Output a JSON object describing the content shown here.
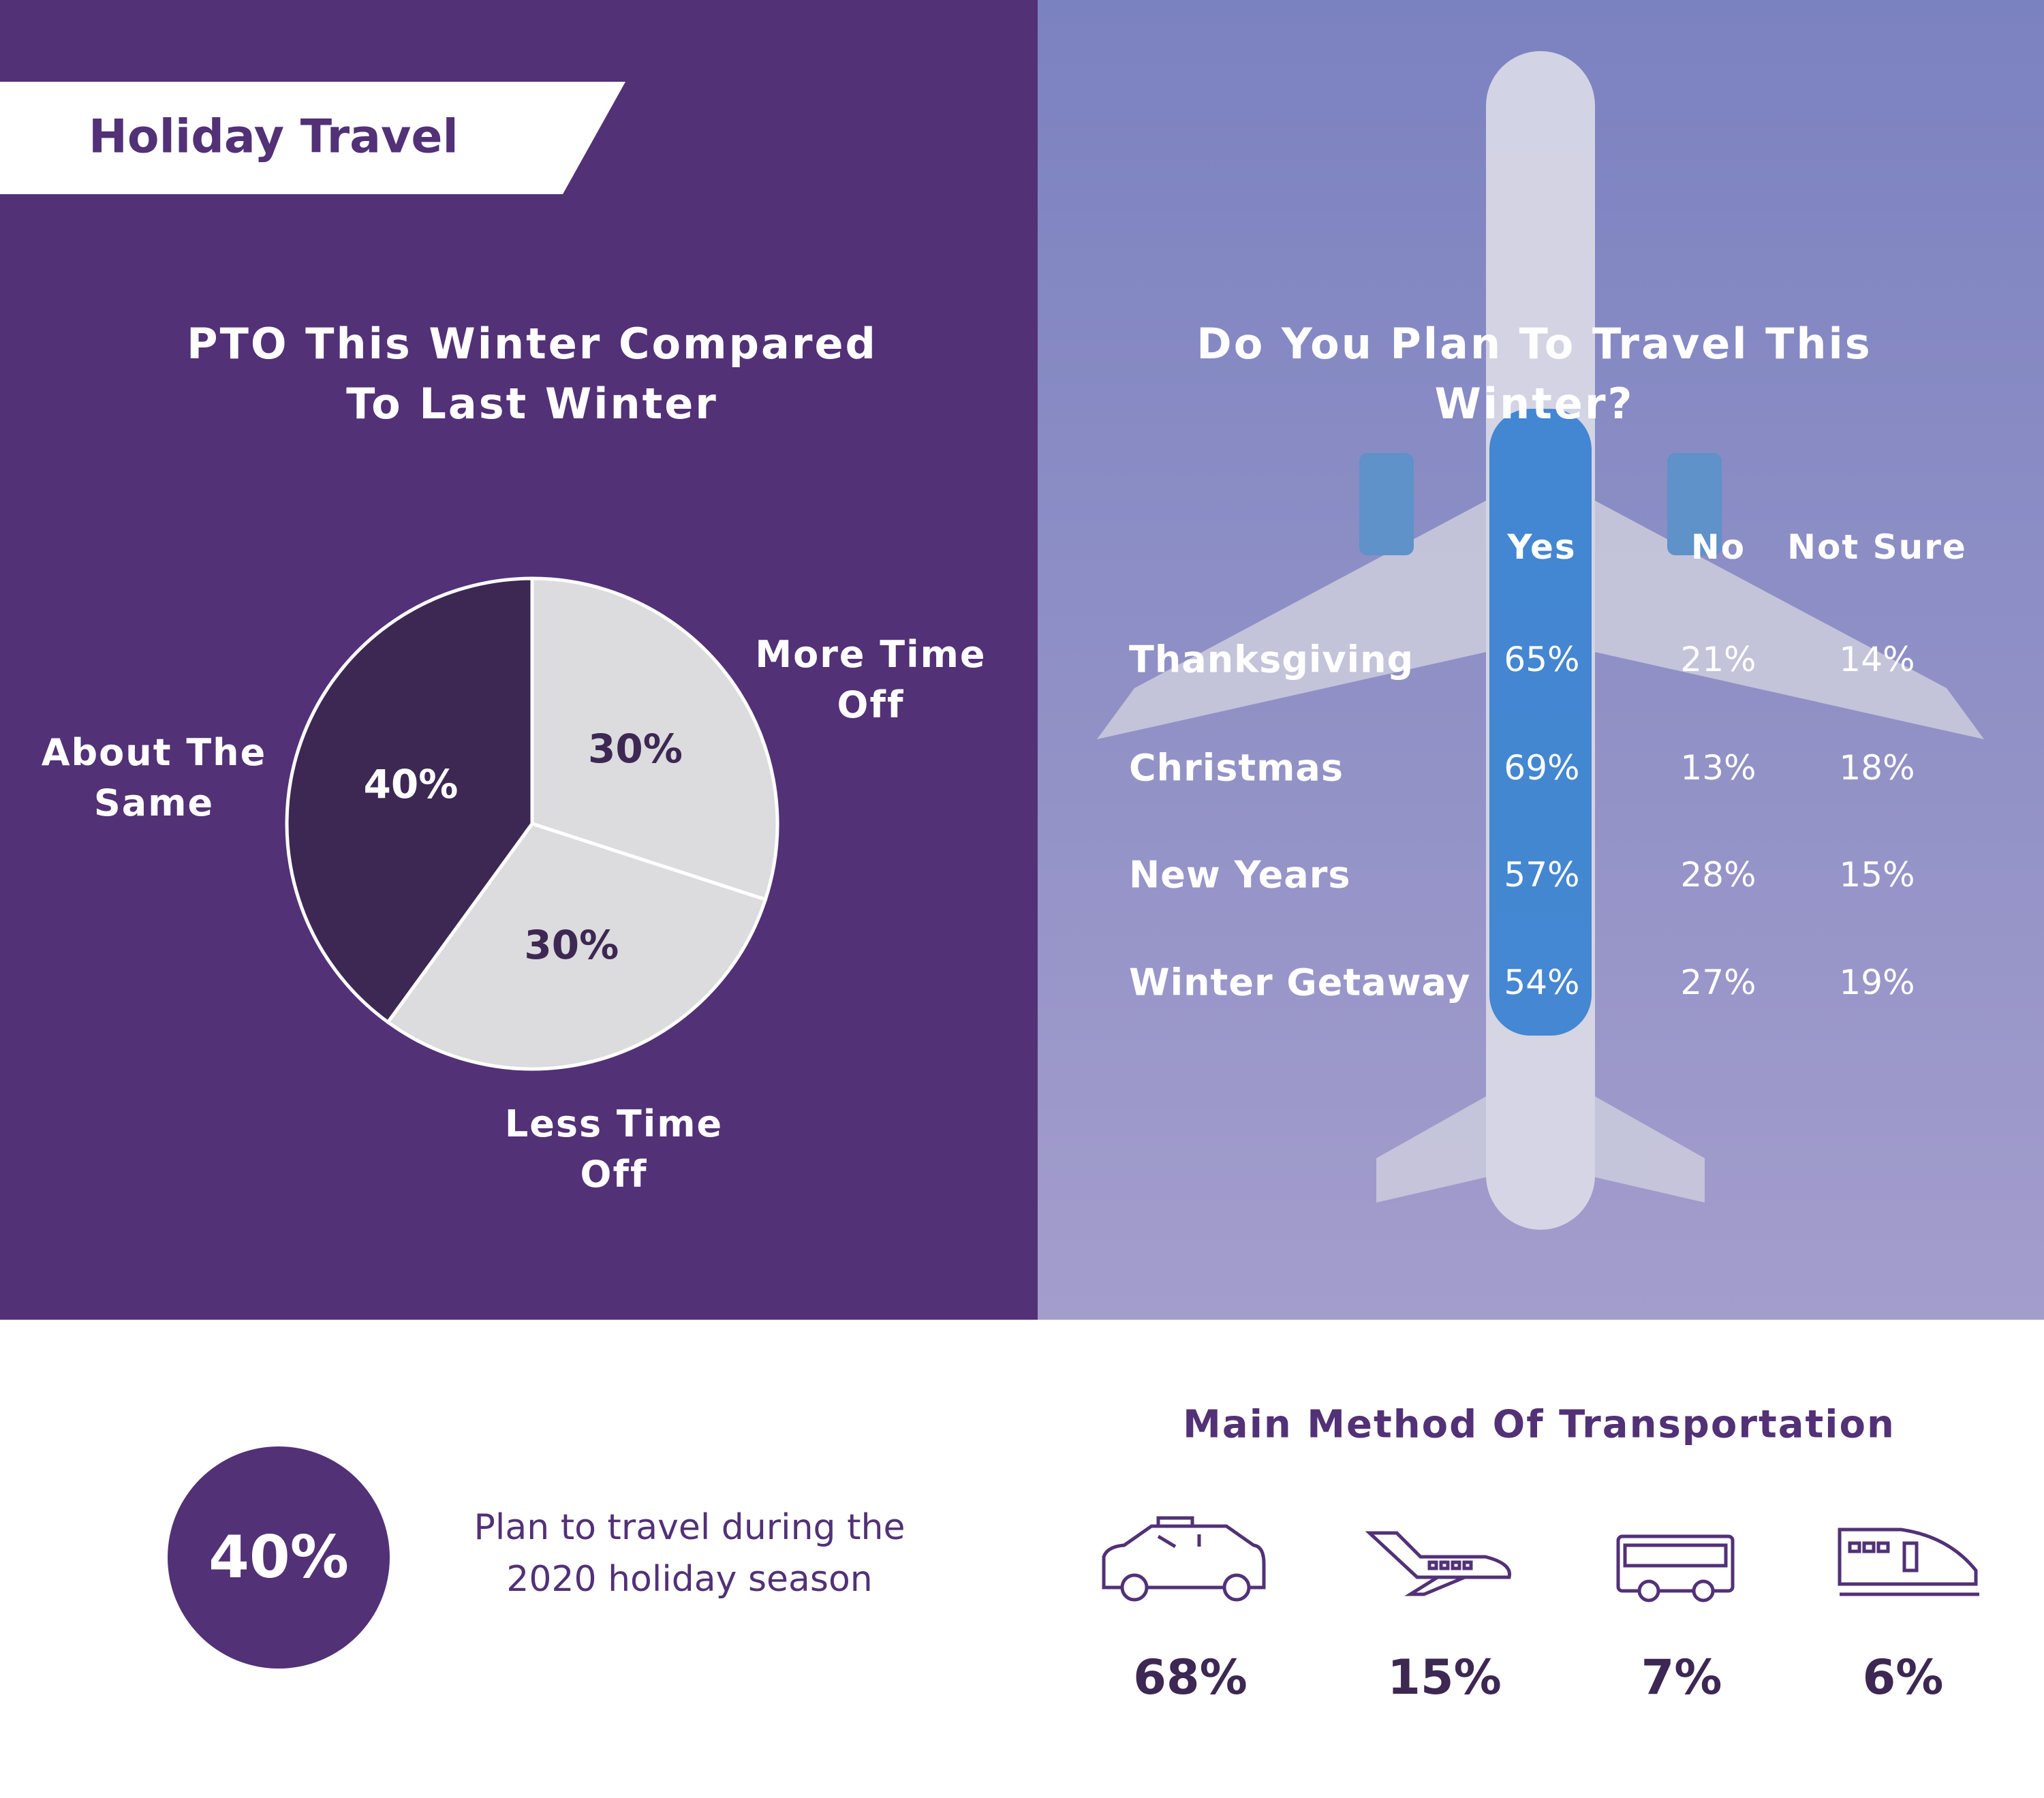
{
  "header": {
    "title": "Holiday Travel"
  },
  "chart_data": {
    "type": "pie",
    "title": "PTO This Winter Compared To Last Winter",
    "categories": [
      "More Time Off",
      "Less Time Off",
      "About The Same"
    ],
    "values": [
      30,
      30,
      40
    ],
    "value_labels": [
      "30%",
      "30%",
      "40%"
    ],
    "colors": [
      "#dcdbdd",
      "#dcdbdd",
      "#3d2753"
    ]
  },
  "table": {
    "title": "Do You Plan To Travel This Winter?",
    "columns": [
      "Yes",
      "No",
      "Not Sure"
    ],
    "rows": [
      {
        "label": "Thanksgiving",
        "cells": [
          "65%",
          "21%",
          "14%"
        ]
      },
      {
        "label": "Christmas",
        "cells": [
          "69%",
          "13%",
          "18%"
        ]
      },
      {
        "label": "New Years",
        "cells": [
          "57%",
          "28%",
          "15%"
        ]
      },
      {
        "label": "Winter Getaway",
        "cells": [
          "54%",
          "27%",
          "19%"
        ]
      }
    ]
  },
  "stat": {
    "value": "40%",
    "text": "Plan to travel during the 2020 holiday season"
  },
  "transportation": {
    "title": "Main Method Of Transportation",
    "items": [
      "68%",
      "15%",
      "7%",
      "6%"
    ]
  }
}
